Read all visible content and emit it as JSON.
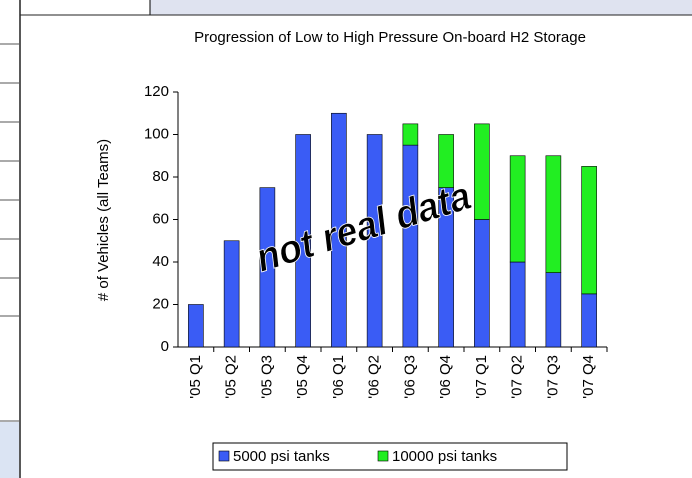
{
  "chart_data": {
    "type": "stacked_bar",
    "title": "Progression of Low to High Pressure On-board H2 Storage",
    "y_label": "# of Vehicles (all Teams)",
    "annotation": "not real data",
    "categories": [
      "'05 Q1",
      "'05 Q2",
      "'05 Q3",
      "'05 Q4",
      "'06 Q1",
      "'06 Q2",
      "'06 Q3",
      "'06 Q4",
      "'07 Q1",
      "'07 Q2",
      "'07 Q3",
      "'07 Q4"
    ],
    "series": [
      {
        "name": "5000 psi tanks",
        "color": "#3a5cf5",
        "values": [
          20,
          50,
          75,
          100,
          110,
          100,
          95,
          75,
          60,
          40,
          35,
          25
        ]
      },
      {
        "name": "10000 psi tanks",
        "color": "#22ee22",
        "values": [
          0,
          0,
          0,
          0,
          0,
          0,
          10,
          25,
          45,
          50,
          55,
          60
        ]
      }
    ],
    "ylim": [
      0,
      120
    ],
    "yticks": [
      0,
      20,
      40,
      60,
      80,
      100,
      120
    ],
    "legend": "bottom"
  }
}
